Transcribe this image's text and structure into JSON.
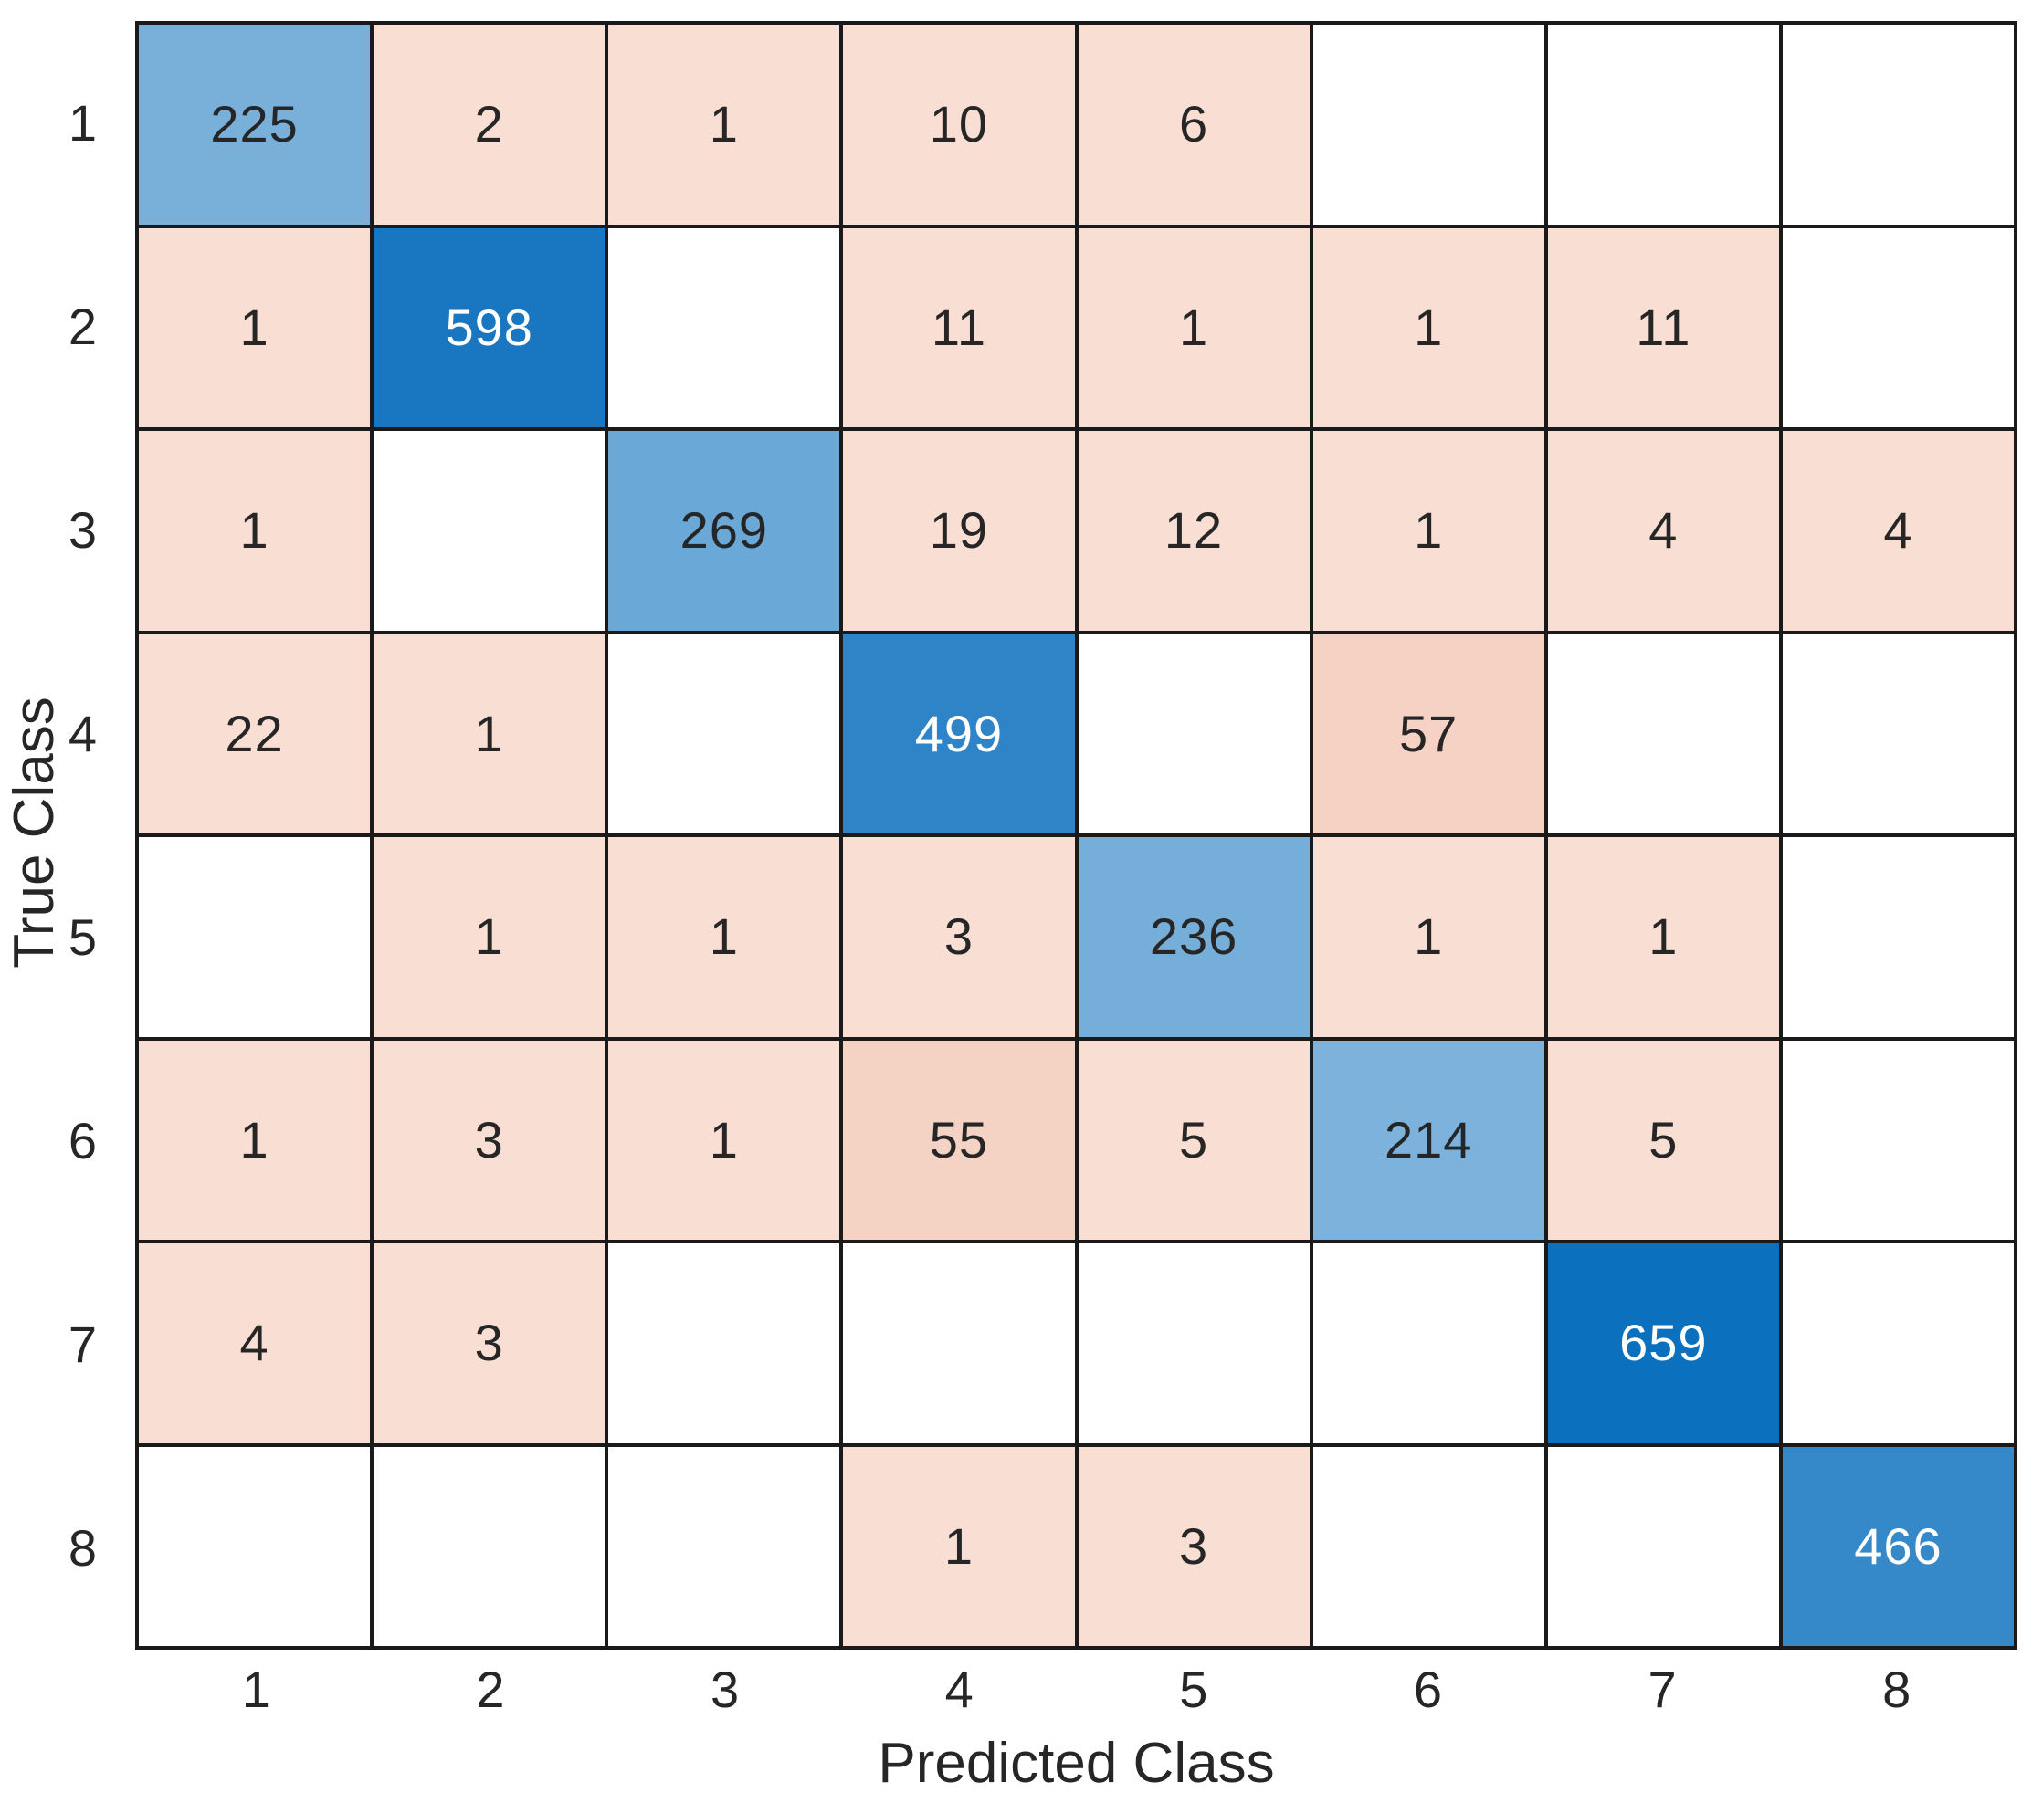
{
  "chart_data": {
    "type": "heatmap",
    "subtype": "confusion-matrix",
    "title": "",
    "xlabel": "Predicted Class",
    "ylabel": "True Class",
    "x_ticks": [
      "1",
      "2",
      "3",
      "4",
      "5",
      "6",
      "7",
      "8"
    ],
    "y_ticks": [
      "1",
      "2",
      "3",
      "4",
      "5",
      "6",
      "7",
      "8"
    ],
    "matrix": [
      [
        225,
        2,
        1,
        10,
        6,
        null,
        null,
        null
      ],
      [
        1,
        598,
        null,
        11,
        1,
        1,
        11,
        null
      ],
      [
        1,
        null,
        269,
        19,
        12,
        1,
        4,
        4
      ],
      [
        22,
        1,
        null,
        499,
        null,
        57,
        null,
        null
      ],
      [
        null,
        1,
        1,
        3,
        236,
        1,
        1,
        null
      ],
      [
        1,
        3,
        1,
        55,
        5,
        214,
        5,
        null
      ],
      [
        4,
        3,
        null,
        null,
        null,
        null,
        659,
        null
      ],
      [
        null,
        null,
        null,
        1,
        3,
        null,
        null,
        466
      ]
    ],
    "max_value": 659,
    "grid": true,
    "legend": "none",
    "colors": {
      "diagonal_base": "#0B70BD",
      "off_diagonal_base": "#D95319",
      "empty_cell": "#FFFFFF",
      "grid_line": "#1A1A1A",
      "text_dark": "#262626",
      "text_light": "#FFFFFF"
    }
  }
}
